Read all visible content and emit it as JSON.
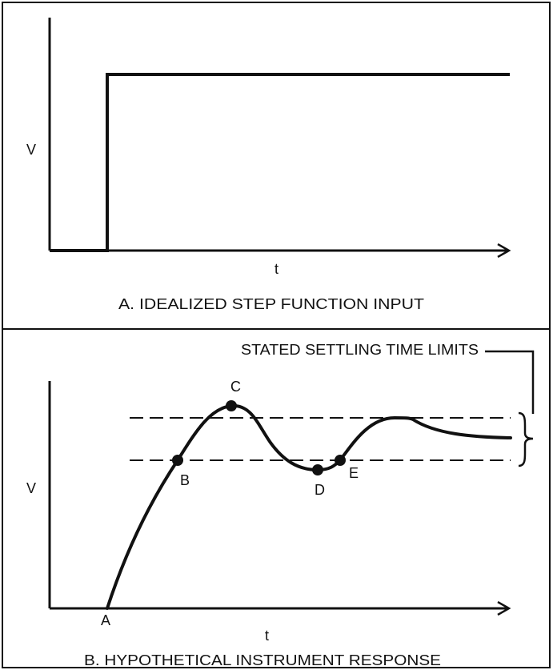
{
  "panel_a": {
    "y_axis_label": "V",
    "x_axis_label": "t",
    "caption": "A. IDEALIZED STEP FUNCTION INPUT"
  },
  "panel_b": {
    "y_axis_label": "V",
    "x_axis_label": "t",
    "caption": "B. HYPOTHETICAL INSTRUMENT RESPONSE",
    "limits_label": "STATED SETTLING TIME LIMITS",
    "points": [
      {
        "id": "A",
        "label": "A"
      },
      {
        "id": "B",
        "label": "B"
      },
      {
        "id": "C",
        "label": "C"
      },
      {
        "id": "D",
        "label": "D"
      },
      {
        "id": "E",
        "label": "E"
      }
    ]
  },
  "colors": {
    "ink": "#111111",
    "background": "#ffffff"
  }
}
